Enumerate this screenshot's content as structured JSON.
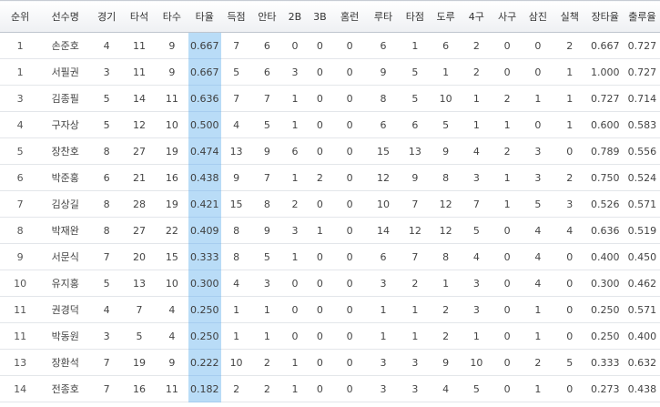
{
  "table": {
    "headers": [
      "순위",
      "선수명",
      "경기",
      "타석",
      "타수",
      "타율",
      "득점",
      "안타",
      "2B",
      "3B",
      "홈런",
      "루타",
      "타점",
      "도루",
      "4구",
      "사구",
      "삼진",
      "실책",
      "장타율",
      "출루율"
    ],
    "highlight_column": 5,
    "highlight_color": "#b9dcf7",
    "rows": [
      [
        "1",
        "손준호",
        "4",
        "11",
        "9",
        "0.667",
        "7",
        "6",
        "0",
        "0",
        "0",
        "6",
        "1",
        "6",
        "2",
        "0",
        "0",
        "2",
        "0.667",
        "0.727"
      ],
      [
        "1",
        "서필권",
        "3",
        "11",
        "9",
        "0.667",
        "5",
        "6",
        "3",
        "0",
        "0",
        "9",
        "5",
        "1",
        "2",
        "0",
        "0",
        "1",
        "1.000",
        "0.727"
      ],
      [
        "3",
        "김종필",
        "5",
        "14",
        "11",
        "0.636",
        "7",
        "7",
        "1",
        "0",
        "0",
        "8",
        "5",
        "10",
        "1",
        "2",
        "1",
        "1",
        "0.727",
        "0.714"
      ],
      [
        "4",
        "구자상",
        "5",
        "12",
        "10",
        "0.500",
        "4",
        "5",
        "1",
        "0",
        "0",
        "6",
        "6",
        "5",
        "1",
        "1",
        "0",
        "1",
        "0.600",
        "0.583"
      ],
      [
        "5",
        "장찬호",
        "8",
        "27",
        "19",
        "0.474",
        "13",
        "9",
        "6",
        "0",
        "0",
        "15",
        "13",
        "9",
        "4",
        "2",
        "3",
        "0",
        "0.789",
        "0.556"
      ],
      [
        "6",
        "박준홍",
        "6",
        "21",
        "16",
        "0.438",
        "9",
        "7",
        "1",
        "2",
        "0",
        "12",
        "9",
        "8",
        "3",
        "1",
        "3",
        "2",
        "0.750",
        "0.524"
      ],
      [
        "7",
        "김상길",
        "8",
        "28",
        "19",
        "0.421",
        "15",
        "8",
        "2",
        "0",
        "0",
        "10",
        "7",
        "12",
        "7",
        "1",
        "5",
        "3",
        "0.526",
        "0.571"
      ],
      [
        "8",
        "박재완",
        "8",
        "27",
        "22",
        "0.409",
        "8",
        "9",
        "3",
        "1",
        "0",
        "14",
        "12",
        "12",
        "5",
        "0",
        "4",
        "4",
        "0.636",
        "0.519"
      ],
      [
        "9",
        "서문식",
        "7",
        "20",
        "15",
        "0.333",
        "8",
        "5",
        "1",
        "0",
        "0",
        "6",
        "7",
        "8",
        "4",
        "0",
        "4",
        "0",
        "0.400",
        "0.450"
      ],
      [
        "10",
        "유지홍",
        "5",
        "13",
        "10",
        "0.300",
        "4",
        "3",
        "0",
        "0",
        "0",
        "3",
        "2",
        "1",
        "3",
        "0",
        "4",
        "0",
        "0.300",
        "0.462"
      ],
      [
        "11",
        "권경덕",
        "4",
        "7",
        "4",
        "0.250",
        "1",
        "1",
        "0",
        "0",
        "0",
        "1",
        "1",
        "2",
        "3",
        "0",
        "1",
        "0",
        "0.250",
        "0.571"
      ],
      [
        "11",
        "박동원",
        "3",
        "5",
        "4",
        "0.250",
        "1",
        "1",
        "0",
        "0",
        "0",
        "1",
        "1",
        "2",
        "1",
        "0",
        "1",
        "0",
        "0.250",
        "0.400"
      ],
      [
        "13",
        "장환석",
        "7",
        "19",
        "9",
        "0.222",
        "10",
        "2",
        "1",
        "0",
        "0",
        "3",
        "3",
        "9",
        "10",
        "0",
        "2",
        "5",
        "0.333",
        "0.632"
      ],
      [
        "14",
        "전종호",
        "7",
        "16",
        "11",
        "0.182",
        "2",
        "2",
        "1",
        "0",
        "0",
        "3",
        "3",
        "4",
        "5",
        "0",
        "1",
        "0",
        "0.273",
        "0.438"
      ]
    ]
  }
}
